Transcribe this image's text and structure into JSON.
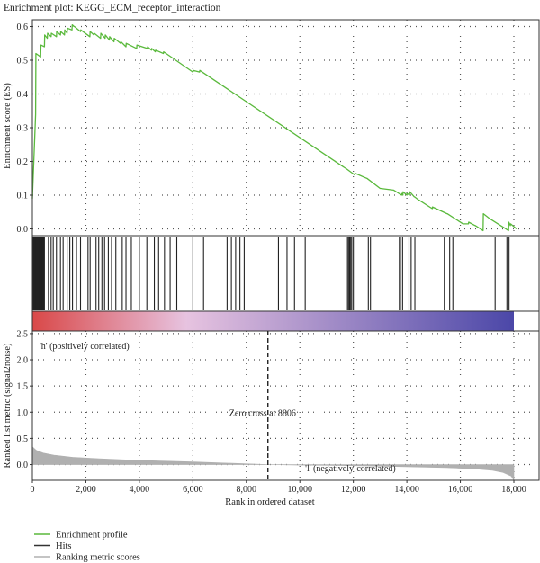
{
  "chart_data": {
    "type": "line",
    "title": "Enrichment plot: KEGG_ECM_receptor_interaction",
    "xlabel": "Rank in ordered dataset",
    "xlim": [
      0,
      18500
    ],
    "x_ticks": [
      0,
      2000,
      4000,
      6000,
      8000,
      10000,
      12000,
      14000,
      16000,
      18000
    ],
    "x_tick_labels": [
      "0",
      "2,000",
      "4,000",
      "6,000",
      "8,000",
      "10,000",
      "12,000",
      "14,000",
      "16,000",
      "18,000"
    ],
    "grid": true,
    "es_panel": {
      "ylabel": "Enrichment score (ES)",
      "ylim": [
        -0.02,
        0.62
      ],
      "y_ticks": [
        0.0,
        0.1,
        0.2,
        0.3,
        0.4,
        0.5,
        0.6
      ],
      "y_tick_labels": [
        "0.0",
        "0.1",
        "0.2",
        "0.3",
        "0.4",
        "0.5",
        "0.6"
      ],
      "series": [
        {
          "name": "Enrichment profile",
          "color": "#5ab93c",
          "x": [
            0,
            120,
            130,
            310,
            320,
            450,
            460,
            560,
            570,
            700,
            710,
            900,
            910,
            1050,
            1060,
            1200,
            1210,
            1300,
            1310,
            1480,
            1490,
            1560,
            1570,
            1800,
            1810,
            2150,
            2160,
            2300,
            2310,
            2550,
            2560,
            2720,
            2730,
            2880,
            2890,
            3050,
            3060,
            3300,
            3310,
            3500,
            3510,
            3900,
            3910,
            4300,
            4310,
            4450,
            4460,
            4600,
            4610,
            4900,
            4910,
            6000,
            6010,
            6250,
            6260,
            11700,
            11710,
            12050,
            12060,
            12500,
            12510,
            13000,
            13010,
            13500,
            13510,
            13800,
            13810,
            13850,
            13860,
            14000,
            14010,
            14100,
            14110,
            14280,
            14290,
            14450,
            14460,
            14950,
            14960,
            15500,
            15510,
            16100,
            16110,
            16300,
            16310,
            16550,
            16560,
            16850,
            16860,
            17100,
            17110,
            17800,
            17810,
            17870,
            17880,
            18100
          ],
          "y": [
            0.09,
            0.34,
            0.52,
            0.51,
            0.545,
            0.54,
            0.575,
            0.565,
            0.58,
            0.57,
            0.58,
            0.57,
            0.585,
            0.575,
            0.585,
            0.575,
            0.59,
            0.58,
            0.595,
            0.59,
            0.605,
            0.6,
            0.6,
            0.585,
            0.59,
            0.57,
            0.585,
            0.575,
            0.58,
            0.565,
            0.58,
            0.565,
            0.575,
            0.56,
            0.57,
            0.555,
            0.565,
            0.55,
            0.555,
            0.54,
            0.55,
            0.535,
            0.545,
            0.535,
            0.54,
            0.53,
            0.535,
            0.525,
            0.53,
            0.52,
            0.525,
            0.465,
            0.47,
            0.465,
            0.47,
            0.18,
            0.18,
            0.16,
            0.165,
            0.15,
            0.15,
            0.12,
            0.12,
            0.115,
            0.115,
            0.1,
            0.105,
            0.1,
            0.11,
            0.1,
            0.105,
            0.1,
            0.11,
            0.095,
            0.095,
            0.085,
            0.085,
            0.06,
            0.065,
            0.045,
            0.045,
            0.015,
            0.015,
            0.015,
            0.02,
            0.01,
            0.01,
            -0.005,
            0.045,
            0.03,
            0.03,
            -0.005,
            0.02,
            0.01,
            0.015,
            0.0
          ]
        }
      ]
    },
    "hits_panel": {
      "series_name": "Hits",
      "color": "#222222",
      "hit_positions": [
        20,
        40,
        60,
        80,
        100,
        120,
        140,
        160,
        180,
        200,
        220,
        240,
        260,
        280,
        300,
        320,
        340,
        360,
        380,
        400,
        420,
        450,
        600,
        700,
        780,
        900,
        1050,
        1150,
        1300,
        1400,
        1500,
        1650,
        1800,
        2080,
        2160,
        2380,
        2480,
        2600,
        2700,
        2840,
        2960,
        3120,
        3360,
        3500,
        3700,
        4000,
        4280,
        4560,
        4720,
        4940,
        5150,
        5400,
        6000,
        6400,
        7280,
        7440,
        7600,
        7760,
        7920,
        9200,
        9520,
        9800,
        10200,
        11780,
        11820,
        11860,
        11900,
        11940,
        12000,
        12560,
        12640,
        13720,
        13760,
        13840,
        14080,
        14160,
        14300,
        15400,
        15600,
        15720,
        17300,
        17740,
        17780,
        17820
      ]
    },
    "gradient_bar": {
      "from_color": "#d94848",
      "mid_color": "#e7c3e0",
      "to_color": "#4b47a8"
    },
    "rank_panel": {
      "series_name": "Ranking metric scores",
      "color": "#b0b0b0",
      "ylabel": "Ranked list metric (signal2noise)",
      "ylim": [
        -0.3,
        2.55
      ],
      "y_ticks": [
        0.0,
        0.5,
        1.0,
        1.5,
        2.0,
        2.5
      ],
      "y_tick_labels": [
        "0.0",
        "0.5",
        "1.0",
        "1.5",
        "2.0",
        "2.5"
      ],
      "x": [
        0,
        150,
        400,
        800,
        1500,
        2500,
        4000,
        6000,
        8806,
        10000,
        12000,
        14000,
        15500,
        16500,
        17200,
        17600,
        17900,
        18000
      ],
      "y": [
        0.34,
        0.27,
        0.22,
        0.18,
        0.14,
        0.11,
        0.08,
        0.05,
        0.0,
        -0.01,
        -0.02,
        -0.04,
        -0.06,
        -0.08,
        -0.11,
        -0.15,
        -0.22,
        -0.3
      ],
      "zero_cross": 8806,
      "zero_cross_label": "Zero cross at 8806",
      "pos_label": "'h' (positively correlated)",
      "pos_color": "#e03a3a",
      "neg_label": "'l' (negatively-correlated)",
      "neg_color": "#3a52a8"
    },
    "legend": {
      "placement": "bottom-left",
      "items": [
        {
          "label": "Enrichment profile",
          "color": "#5ab93c"
        },
        {
          "label": "Hits",
          "color": "#333333"
        },
        {
          "label": "Ranking metric scores",
          "color": "#b0b0b0"
        }
      ]
    }
  }
}
